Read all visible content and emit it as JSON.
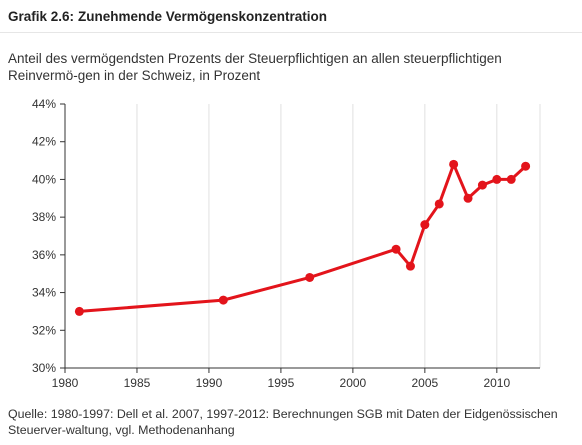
{
  "header": {
    "figure_number": "Grafik 2.6:",
    "title": "Zunehmende Vermögenskonzentration",
    "subtitle": "Anteil des vermögendsten Prozents der Steuerpflichtigen an allen steuerpflichtigen Reinvermö-gen in der Schweiz, in Prozent"
  },
  "footer": {
    "source": "Quelle: 1980-1997: Dell et al. 2007, 1997-2012: Berechnungen SGB mit Daten der Eidgenössischen Steuerver-waltung, vgl. Methodenanhang"
  },
  "colors": {
    "series": "#e3141b",
    "grid": "#e0e0e0",
    "axis": "#333333"
  },
  "chart_data": {
    "type": "line",
    "xlim": [
      1980,
      2013
    ],
    "ylim": [
      30,
      44
    ],
    "x_ticks": [
      1980,
      1985,
      1990,
      1995,
      2000,
      2005,
      2010
    ],
    "y_ticks": [
      30,
      32,
      34,
      36,
      38,
      40,
      42,
      44
    ],
    "y_tick_suffix": "%",
    "grid": "vertical",
    "series": [
      {
        "x": [
          1981,
          1991,
          1997,
          2003,
          2004,
          2005,
          2006,
          2007,
          2008,
          2009,
          2010,
          2011,
          2012
        ],
        "y": [
          33.0,
          33.6,
          34.8,
          36.3,
          35.4,
          37.6,
          38.7,
          40.8,
          39.0,
          39.7,
          40.0,
          40.0,
          40.7
        ]
      }
    ]
  }
}
